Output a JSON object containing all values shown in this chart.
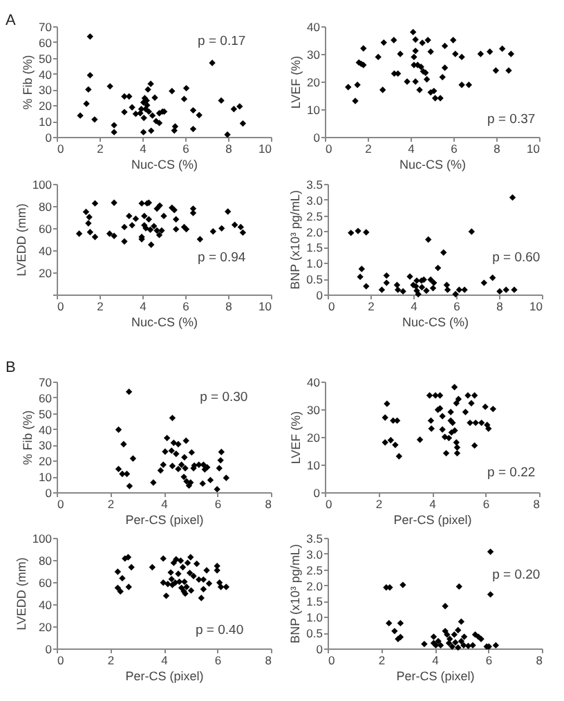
{
  "chart_data": [
    {
      "type": "scatter",
      "xlabel": "Nuc-CS (%)",
      "ylabel": "% Fib (%)",
      "color": "#000000",
      "marker": "diamond",
      "xlim": [
        0,
        10
      ],
      "xticks": [
        0,
        2,
        4,
        6,
        8,
        10
      ],
      "ylim": [
        0,
        70
      ],
      "yticks": [
        0,
        10,
        20,
        30,
        40,
        50,
        60,
        70
      ],
      "annotations": [
        "A",
        "p = 0.17"
      ],
      "x": [
        1.56,
        1.56,
        1.48,
        1.39,
        1.1,
        1.77,
        2.49,
        2.68,
        2.68,
        3.16,
        3.38,
        3.16,
        3.52,
        3.69,
        3.95,
        4.11,
        4.22,
        4.3,
        4.07,
        4.2,
        4.05,
        4.26,
        4.39,
        4.58,
        4.41,
        4.47,
        4.64,
        4.79,
        4.79,
        4.94,
        5.02,
        5.38,
        5.53,
        5.49,
        5.95,
        6.05,
        6.37,
        6.37,
        6.65,
        7.26,
        7.68,
        7.97,
        8.27,
        8.54,
        8.69,
        4.05,
        4.15,
        3.9
      ],
      "values": [
        63.5,
        39,
        30,
        21,
        13.5,
        11,
        32,
        7.4,
        3,
        25.6,
        25.6,
        15.7,
        18.7,
        14.6,
        17.6,
        24.5,
        20,
        16,
        12,
        23,
        3,
        30,
        33.6,
        24.8,
        3.9,
        13.5,
        10,
        8.8,
        15,
        16,
        16,
        29,
        6.6,
        4,
        24,
        30.8,
        16.8,
        5,
        13.8,
        46.8,
        23,
        1.4,
        17.6,
        19.3,
        8.5,
        21.8,
        17.6,
        15
      ]
    },
    {
      "type": "scatter",
      "xlabel": "Nuc-CS (%)",
      "ylabel": "LVEF (%)",
      "color": "#000000",
      "marker": "diamond",
      "xlim": [
        0,
        10
      ],
      "xticks": [
        0,
        2,
        4,
        6,
        8,
        10
      ],
      "ylim": [
        0,
        40
      ],
      "yticks": [
        0,
        10,
        20,
        30,
        40
      ],
      "annotations": [
        "p = 0.37"
      ],
      "x": [
        1.09,
        1.42,
        1.52,
        1.59,
        1.7,
        1.8,
        1.8,
        2.49,
        2.7,
        2.75,
        3.22,
        3.24,
        3.41,
        3.52,
        3.84,
        4.12,
        4.23,
        4.23,
        4.16,
        4.16,
        4.23,
        4.33,
        4.42,
        4.49,
        4.55,
        4.59,
        4.7,
        4.76,
        4.81,
        4.94,
        4.94,
        5.09,
        5.15,
        5.39,
        5.49,
        5.6,
        5.6,
        5.99,
        6.09,
        6.39,
        6.39,
        6.72,
        7.27,
        7.7,
        7.98,
        8.28,
        8.58,
        8.69
      ],
      "values": [
        18,
        13,
        18.8,
        26.9,
        26.4,
        26,
        32,
        28.9,
        17,
        34.1,
        35,
        22.9,
        22.9,
        30,
        20,
        37.9,
        35.2,
        31.1,
        28.9,
        26,
        20,
        26,
        17,
        25.3,
        34,
        23.7,
        23.2,
        20.8,
        35,
        30.8,
        16.1,
        16.6,
        14,
        14,
        21.6,
        25,
        32.9,
        35,
        30,
        28.9,
        18.8,
        18.8,
        30,
        30.8,
        24,
        31.9,
        24,
        30
      ]
    },
    {
      "type": "scatter",
      "xlabel": "Nuc-CS (%)",
      "ylabel": "LVEDD (mm)",
      "color": "#000000",
      "marker": "diamond",
      "xlim": [
        0,
        10
      ],
      "xticks": [
        0,
        2,
        4,
        6,
        8,
        10
      ],
      "ylim": [
        0,
        100
      ],
      "yticks": [
        {
          "value": 0,
          "label": null
        },
        20,
        40,
        60,
        80,
        100
      ],
      "annotations": [
        "p = 0.94"
      ],
      "x": [
        1.05,
        1.37,
        1.52,
        1.48,
        1.56,
        1.79,
        1.79,
        2.47,
        2.68,
        2.68,
        3.16,
        3.16,
        3.38,
        3.52,
        3.69,
        3.97,
        3.97,
        3.97,
        4.09,
        4.09,
        4.16,
        4.22,
        4.3,
        4.3,
        4.37,
        4.41,
        4.54,
        4.68,
        4.68,
        4.79,
        4.81,
        4.9,
        5.0,
        5.38,
        5.49,
        5.57,
        5.57,
        5.95,
        6.05,
        6.37,
        6.37,
        6.69,
        7.3,
        7.7,
        7.99,
        8.31,
        8.59,
        8.69
      ],
      "values": [
        55,
        74.7,
        70,
        64.4,
        56.4,
        52,
        82.4,
        55,
        53,
        83,
        61,
        48,
        71,
        62.6,
        68.5,
        82.4,
        52,
        50,
        71,
        62.6,
        60,
        82.4,
        83,
        68,
        58.6,
        45,
        61.8,
        77.6,
        57.8,
        53.8,
        80.4,
        57.8,
        71,
        78.4,
        76.4,
        68,
        59,
        61,
        59,
        77.6,
        73.7,
        50,
        57,
        59.8,
        75,
        63,
        61,
        56
      ]
    },
    {
      "type": "scatter",
      "xlabel": "Nuc-CS (%)",
      "ylabel": "BNP (x10³ pg/mL)",
      "color": "#000000",
      "marker": "diamond",
      "xlim": [
        0,
        10
      ],
      "xticks": [
        0,
        2,
        4,
        6,
        8,
        10
      ],
      "ylim": [
        0,
        3.5
      ],
      "yticks": [
        0,
        0.5,
        {
          "value": 1,
          "label": "1.0"
        },
        1.5,
        {
          "value": 2,
          "label": "2.0"
        },
        2.5,
        {
          "value": 3,
          "label": "3.0"
        },
        3.5
      ],
      "annotations": [
        "p = 0.60"
      ],
      "x": [
        1.09,
        1.42,
        1.8,
        1.59,
        1.52,
        1.8,
        2.53,
        2.75,
        2.75,
        3.24,
        3.28,
        3.52,
        3.84,
        4.12,
        4.16,
        4.23,
        4.38,
        4.4,
        4.49,
        4.61,
        4.7,
        4.81,
        4.96,
        4.92,
        5.15,
        5.41,
        5.56,
        5.6,
        5.97,
        6.14,
        6.39,
        6.72,
        7.3,
        7.7,
        8.03,
        8.33,
        8.63,
        8.71,
        4.0,
        4.16
      ],
      "values": [
        1.95,
        2.01,
        1.97,
        0.81,
        0.56,
        0.26,
        0.15,
        0.6,
        0.37,
        0.3,
        0.15,
        0.1,
        0.57,
        0.26,
        0.12,
        0.01,
        0.44,
        0.23,
        0.47,
        0.12,
        1.74,
        0.47,
        0.37,
        0.2,
        0.84,
        1.33,
        0.3,
        0.15,
        0.01,
        0.15,
        0.15,
        1.99,
        0.37,
        0.53,
        0.1,
        0.15,
        3.07,
        0.15,
        0.3,
        0.44
      ]
    },
    {
      "type": "scatter",
      "xlabel": "Per-CS (pixel)",
      "ylabel": "% Fib (%)",
      "color": "#000000",
      "marker": "diamond",
      "xlim": [
        0,
        8
      ],
      "xticks": [
        0,
        2,
        4,
        6,
        8
      ],
      "ylim": [
        0,
        70
      ],
      "yticks": [
        0,
        10,
        20,
        30,
        40,
        50,
        60,
        70
      ],
      "annotations": [
        "B",
        "p = 0.30"
      ],
      "x": [
        2.7,
        2.31,
        2.5,
        2.85,
        2.31,
        2.45,
        2.62,
        2.72,
        4.32,
        4.12,
        4.05,
        3.98,
        3.88,
        3.61,
        4.29,
        4.37,
        4.46,
        4.54,
        4.32,
        4.54,
        4.66,
        4.77,
        4.8,
        4.83,
        4.75,
        4.85,
        4.94,
        5.0,
        5.04,
        5.11,
        5.14,
        5.31,
        5.48,
        5.62,
        5.53,
        5.45,
        5.74,
        5.99,
        6.07,
        6.15,
        6.12,
        6.33
      ],
      "values": [
        63.6,
        39.6,
        30.4,
        21.3,
        14.7,
        11.6,
        11.6,
        3.9,
        47,
        34.3,
        25.7,
        17.4,
        13.8,
        6.1,
        26.3,
        31.3,
        24.3,
        30.4,
        16.6,
        14.7,
        17.4,
        22.1,
        15.2,
        32.6,
        9.7,
        6.9,
        4.2,
        6.1,
        25.2,
        15.2,
        16.9,
        17.4,
        17.4,
        15.8,
        14.4,
        5.5,
        7.7,
        1.9,
        15.2,
        25.5,
        20.2,
        9.1
      ]
    },
    {
      "type": "scatter",
      "xlabel": "Per-CS (pixel)",
      "ylabel": "LVEF (%)",
      "color": "#000000",
      "marker": "diamond",
      "xlim": [
        0,
        8
      ],
      "xticks": [
        0,
        2,
        4,
        6,
        8
      ],
      "ylim": [
        0,
        40
      ],
      "yticks": [
        0,
        10,
        20,
        30,
        40
      ],
      "annotations": [
        "p = 0.22"
      ],
      "x": [
        2.32,
        2.25,
        2.25,
        2.46,
        2.55,
        2.7,
        2.63,
        2.77,
        3.55,
        3.91,
        4.13,
        4.3,
        3.96,
        3.98,
        4.22,
        4.3,
        4.39,
        4.39,
        4.48,
        4.53,
        4.63,
        4.7,
        4.77,
        4.84,
        4.91,
        4.99,
        4.73,
        4.85,
        4.91,
        4.94,
        4.94,
        4.7,
        5.25,
        5.34,
        5.59,
        5.47,
        5.42,
        5.63,
        5.59,
        5.85,
        5.99,
        6.06,
        6.11,
        6.28
      ],
      "values": [
        32,
        27,
        18,
        18.8,
        25.9,
        25.9,
        17.1,
        13,
        19,
        35,
        35,
        35,
        25.9,
        23,
        29.8,
        30.3,
        27.5,
        22.7,
        20,
        14.1,
        19.6,
        25.9,
        25.1,
        38,
        32.2,
        33.7,
        21.6,
        22.3,
        18,
        16.2,
        14.1,
        29,
        29,
        35,
        35,
        32.2,
        25.1,
        25.1,
        16.9,
        25.1,
        30.9,
        24.3,
        23,
        30.1
      ]
    },
    {
      "type": "scatter",
      "xlabel": "Per-CS (pixel)",
      "ylabel": "LVEDD (mm)",
      "color": "#000000",
      "marker": "diamond",
      "xlim": [
        0,
        8
      ],
      "xticks": [
        0,
        2,
        4,
        6,
        8
      ],
      "ylim": [
        0,
        100
      ],
      "yticks": [
        0,
        20,
        40,
        60,
        80,
        100
      ],
      "annotations": [
        "p = 0.40"
      ],
      "x": [
        2.28,
        2.28,
        2.38,
        2.45,
        2.55,
        2.67,
        2.69,
        2.79,
        3.57,
        3.98,
        3.98,
        4.09,
        4.15,
        4.26,
        4.29,
        4.32,
        4.37,
        4.43,
        4.46,
        4.54,
        4.58,
        4.63,
        4.66,
        4.71,
        4.75,
        4.77,
        4.8,
        4.85,
        4.89,
        4.97,
        5.0,
        5.02,
        5.11,
        5.23,
        5.31,
        5.4,
        5.48,
        5.48,
        5.6,
        5.69,
        5.99,
        5.99,
        6.08,
        6.13,
        6.33
      ],
      "values": [
        69.4,
        54.8,
        51.6,
        63.5,
        81.3,
        82.5,
        55.6,
        73.4,
        73.4,
        59.5,
        81.3,
        47.6,
        58.3,
        68.7,
        62.7,
        57.5,
        77.4,
        59.5,
        80.6,
        67.5,
        60.3,
        79.4,
        54.8,
        73.4,
        51.6,
        60.3,
        49.6,
        55.6,
        77.4,
        68.3,
        82.5,
        52.4,
        65.5,
        76.6,
        62.3,
        45.6,
        53.6,
        62.3,
        70.6,
        58.7,
        74.6,
        70.6,
        59.5,
        55.6,
        55.6
      ]
    },
    {
      "type": "scatter",
      "xlabel": "Per-CS (pixel)",
      "ylabel": "BNP (x10³ pg/mL)",
      "color": "#000000",
      "marker": "diamond",
      "xlim": [
        0,
        8
      ],
      "xticks": [
        0,
        2,
        4,
        6,
        8
      ],
      "ylim": [
        0,
        3.5
      ],
      "yticks": [
        0,
        0.5,
        {
          "value": 1,
          "label": "1.0"
        },
        1.5,
        {
          "value": 2,
          "label": "2.0"
        },
        2.5,
        {
          "value": 3,
          "label": "3.0"
        },
        3.5
      ],
      "annotations": [
        "p = 0.20"
      ],
      "x": [
        2.19,
        2.32,
        2.81,
        2.29,
        2.5,
        2.72,
        2.63,
        2.72,
        3.61,
        3.96,
        3.96,
        4.04,
        4.13,
        4.22,
        4.39,
        4.39,
        4.46,
        4.53,
        4.56,
        4.65,
        4.73,
        4.77,
        4.87,
        4.87,
        4.91,
        4.99,
        4.99,
        5.08,
        5.25,
        5.42,
        5.51,
        5.63,
        5.73,
        5.94,
        6.02,
        6.08,
        6.08,
        6.28,
        5.1
      ],
      "values": [
        1.93,
        1.93,
        2.01,
        0.8,
        0.55,
        0.8,
        0.3,
        0.36,
        0.14,
        0.37,
        0.17,
        0.1,
        0.23,
        0.1,
        0.55,
        1.34,
        0.44,
        0.17,
        0.3,
        0.06,
        0.44,
        0.19,
        0.58,
        0.03,
        1.96,
        0.85,
        0.23,
        0.1,
        0.08,
        0.1,
        0.44,
        0.37,
        0.3,
        0.06,
        0.06,
        3.06,
        1.71,
        0.1,
        0.37
      ]
    }
  ]
}
